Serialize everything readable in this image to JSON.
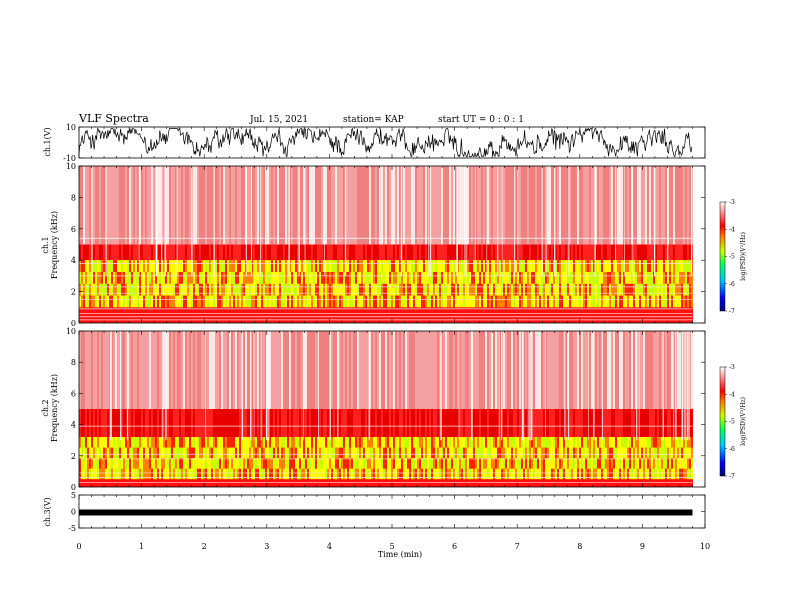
{
  "header": {
    "title": "VLF Spectra",
    "date": "Jul. 15, 2021",
    "station": "station= KAP",
    "start": "start UT =  0 : 0  : 1"
  },
  "chart_data": [
    {
      "type": "line",
      "name": "ch1-waveform",
      "ylabel": "ch.1(V)",
      "ylim": [
        -10,
        10
      ],
      "yticks": [
        "10",
        "-10"
      ],
      "x_range_min": [
        0,
        9.8
      ]
    },
    {
      "type": "heatmap",
      "name": "ch1-spectrogram",
      "ylabel": "ch.1\nFrequency (kHz)",
      "ylim": [
        0,
        10
      ],
      "yticks": [
        "0",
        "2",
        "4",
        "6",
        "8",
        "10"
      ],
      "colorbar": {
        "label": "log(PSD)(V²/Hz)",
        "range": [
          -7,
          -3
        ],
        "ticks": [
          "-3",
          "-4",
          "-5",
          "-6",
          "-7"
        ]
      },
      "note_bands_kHz": [
        [
          1.0,
          4.0
        ]
      ]
    },
    {
      "type": "heatmap",
      "name": "ch2-spectrogram",
      "ylabel": "ch.2\nFrequency (kHz)",
      "ylim": [
        0,
        10
      ],
      "yticks": [
        "0",
        "2",
        "4",
        "6",
        "8",
        "10"
      ],
      "colorbar": {
        "label": "log(PSD)(V²/Hz)",
        "range": [
          -7,
          -3
        ],
        "ticks": [
          "-3",
          "-4",
          "-5",
          "-6",
          "-7"
        ]
      },
      "note_bands_kHz": [
        [
          0.5,
          3.2
        ]
      ]
    },
    {
      "type": "line",
      "name": "ch3-waveform",
      "ylabel": "ch.3(V)",
      "ylim": [
        -5,
        5
      ],
      "yticks": [
        "5",
        "0",
        "-5"
      ],
      "level": -0.3
    }
  ],
  "xaxis": {
    "label": "Time (min)",
    "range": [
      0,
      10
    ],
    "ticks": [
      "0",
      "1",
      "2",
      "3",
      "4",
      "5",
      "6",
      "7",
      "8",
      "9",
      "10"
    ]
  },
  "colors": {
    "background": "#ffffff",
    "trace": "#000000",
    "low_psd": "#000080",
    "mid_psd": "#00ff00",
    "high_psd": "#ff0000"
  }
}
